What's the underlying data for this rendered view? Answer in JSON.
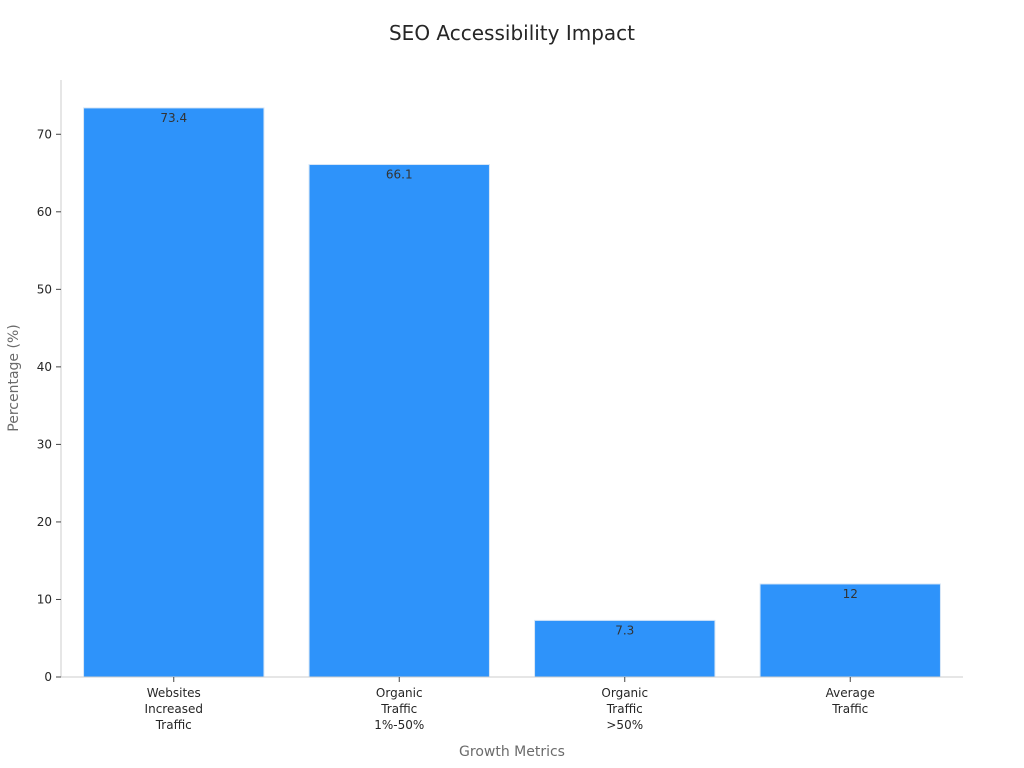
{
  "chart_data": {
    "type": "bar",
    "title": "SEO Accessibility Impact",
    "xlabel": "Growth Metrics",
    "ylabel": "Percentage (%)",
    "categories": [
      [
        "Websites",
        "Increased",
        "Traffic"
      ],
      [
        "Organic",
        "Traffic",
        "1%-50%"
      ],
      [
        "Organic",
        "Traffic",
        ">50%"
      ],
      [
        "Average",
        "Traffic"
      ]
    ],
    "values": [
      73.4,
      66.1,
      7.3,
      12
    ],
    "value_labels": [
      "73.4",
      "66.1",
      "7.3",
      "12"
    ],
    "ylim": [
      0,
      77
    ],
    "yticks": [
      0,
      10,
      20,
      30,
      40,
      50,
      60,
      70
    ],
    "grid": false,
    "bar_color": "#2e93fa"
  }
}
